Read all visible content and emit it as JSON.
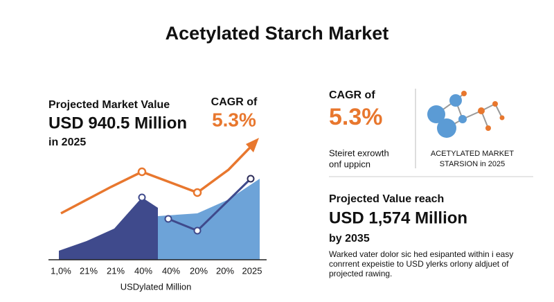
{
  "title": "Acetylated Starch Market",
  "left": {
    "label": "Projected Market Value",
    "value": "USD 940.5 Million",
    "year": "in 2025",
    "cagr_label": "CAGR of",
    "cagr_value": "5.3%"
  },
  "chart": {
    "x_labels": [
      "1,0%",
      "21%",
      "21%",
      "40%",
      "40%",
      "20%",
      "20%",
      "2025"
    ],
    "axis_label": "USDylated Million"
  },
  "right": {
    "cagr_label": "CAGR of",
    "cagr_value": "5.3%",
    "growth_lines": [
      "Steiret exrowth",
      "onf uppicn"
    ],
    "icon_caption": [
      "ACETYLATED MARKET",
      "STARSION in 2025"
    ],
    "projection_label": "Projected Value reach",
    "projection_value": "USD 1,574 Million",
    "projection_year": "by 2035",
    "description": [
      "Warked vater dolor sic hed esipanted within i easy",
      "conrrent expeistie to USD ylerks orlony aldjuet of",
      "projected rawing."
    ]
  }
}
